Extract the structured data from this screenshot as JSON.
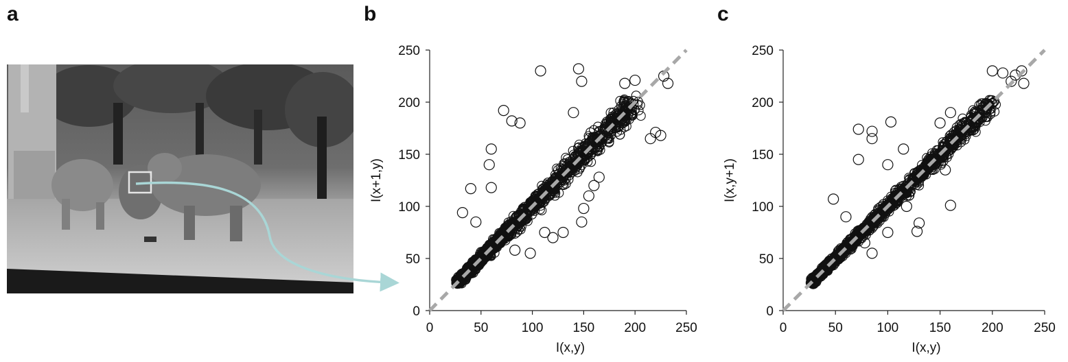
{
  "panels": {
    "a": {
      "letter": "a"
    },
    "b": {
      "letter": "b"
    },
    "c": {
      "letter": "c"
    }
  },
  "colors": {
    "arrow": "#a9d6d6",
    "marker": "#111111",
    "diagonal": "#a8a8a8",
    "axis": "#222222"
  },
  "photo": {
    "icon": "elephants-grayscale-photo"
  },
  "chart_data": [
    {
      "panel": "b",
      "type": "scatter",
      "xlabel": "I(x,y)",
      "ylabel": "I(x+1,y)",
      "xlim": [
        0,
        250
      ],
      "ylim": [
        0,
        250
      ],
      "xticks": [
        0,
        50,
        100,
        150,
        200,
        250
      ],
      "yticks": [
        0,
        50,
        100,
        150,
        200,
        250
      ],
      "diagonal": "dashed y=x",
      "marker": "open-circle",
      "approx_points": 2000,
      "points": [
        [
          30,
          30
        ],
        [
          35,
          36
        ],
        [
          40,
          42
        ],
        [
          45,
          45
        ],
        [
          50,
          52
        ],
        [
          55,
          54
        ],
        [
          60,
          62
        ],
        [
          70,
          68
        ],
        [
          80,
          82
        ],
        [
          90,
          88
        ],
        [
          100,
          102
        ],
        [
          110,
          108
        ],
        [
          120,
          124
        ],
        [
          130,
          128
        ],
        [
          140,
          145
        ],
        [
          150,
          148
        ],
        [
          160,
          165
        ],
        [
          170,
          172
        ],
        [
          180,
          185
        ],
        [
          190,
          192
        ],
        [
          195,
          198
        ],
        [
          60,
          155
        ],
        [
          58,
          140
        ],
        [
          72,
          192
        ],
        [
          80,
          182
        ],
        [
          88,
          180
        ],
        [
          60,
          118
        ],
        [
          40,
          117
        ],
        [
          32,
          94
        ],
        [
          45,
          85
        ],
        [
          108,
          230
        ],
        [
          145,
          232
        ],
        [
          148,
          220
        ],
        [
          190,
          218
        ],
        [
          200,
          221
        ],
        [
          228,
          225
        ],
        [
          232,
          218
        ],
        [
          220,
          171
        ],
        [
          225,
          168
        ],
        [
          215,
          165
        ],
        [
          140,
          190
        ],
        [
          112,
          75
        ],
        [
          120,
          70
        ],
        [
          130,
          75
        ],
        [
          150,
          98
        ],
        [
          155,
          110
        ],
        [
          83,
          58
        ],
        [
          98,
          55
        ],
        [
          148,
          85
        ],
        [
          160,
          120
        ],
        [
          165,
          128
        ]
      ]
    },
    {
      "panel": "c",
      "type": "scatter",
      "xlabel": "I(x,y)",
      "ylabel": "I(x,y+1)",
      "xlim": [
        0,
        250
      ],
      "ylim": [
        0,
        250
      ],
      "xticks": [
        0,
        50,
        100,
        150,
        200,
        250
      ],
      "yticks": [
        0,
        50,
        100,
        150,
        200,
        250
      ],
      "diagonal": "dashed y=x",
      "marker": "open-circle",
      "approx_points": 2000,
      "points": [
        [
          30,
          30
        ],
        [
          35,
          35
        ],
        [
          40,
          41
        ],
        [
          45,
          46
        ],
        [
          50,
          50
        ],
        [
          55,
          56
        ],
        [
          60,
          61
        ],
        [
          70,
          70
        ],
        [
          80,
          80
        ],
        [
          90,
          90
        ],
        [
          100,
          101
        ],
        [
          110,
          110
        ],
        [
          120,
          122
        ],
        [
          130,
          131
        ],
        [
          140,
          141
        ],
        [
          150,
          150
        ],
        [
          160,
          162
        ],
        [
          170,
          170
        ],
        [
          180,
          182
        ],
        [
          190,
          192
        ],
        [
          195,
          197
        ],
        [
          72,
          174
        ],
        [
          85,
          172
        ],
        [
          85,
          165
        ],
        [
          103,
          181
        ],
        [
          72,
          145
        ],
        [
          48,
          107
        ],
        [
          115,
          155
        ],
        [
          210,
          228
        ],
        [
          218,
          220
        ],
        [
          222,
          226
        ],
        [
          228,
          230
        ],
        [
          230,
          218
        ],
        [
          200,
          230
        ],
        [
          130,
          84
        ],
        [
          128,
          76
        ],
        [
          155,
          135
        ],
        [
          160,
          101
        ],
        [
          118,
          100
        ],
        [
          100,
          75
        ],
        [
          150,
          180
        ],
        [
          160,
          190
        ],
        [
          100,
          140
        ],
        [
          60,
          90
        ],
        [
          85,
          55
        ],
        [
          78,
          65
        ]
      ]
    }
  ]
}
